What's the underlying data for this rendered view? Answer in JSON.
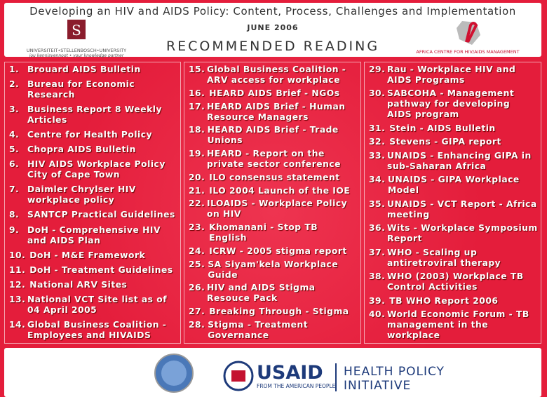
{
  "header": {
    "title": "Developing an HIV and AIDS Policy: Content, Process, Challenges and Implementation",
    "date": "JUNE 2006",
    "heading": "RECOMMENDED READING",
    "left_logo": {
      "name": "UNIVERSITEIT•STELLENBOSCH•UNIVERSITY",
      "tagline": "jou kennisvennoot • your knowledge partner"
    },
    "right_logo": {
      "name": "AFRICA CENTRE FOR HIV/AIDS MANAGEMENT"
    }
  },
  "columns": [
    [
      {
        "num": "1.",
        "text": "Brouard AIDS Bulletin"
      },
      {
        "num": "2.",
        "text": "Bureau for Economic Research"
      },
      {
        "num": "3.",
        "text": "Business Report 8 Weekly Articles"
      },
      {
        "num": "4.",
        "text": "Centre for Health Policy"
      },
      {
        "num": "5.",
        "text": "Chopra AIDS Bulletin"
      },
      {
        "num": "6.",
        "text": "HIV AIDS Workplace Policy City of Cape Town"
      },
      {
        "num": "7.",
        "text": "Daimler Chrylser HIV workplace policy"
      },
      {
        "num": "8.",
        "text": "SANTCP Practical Guidelines"
      },
      {
        "num": "9.",
        "text": "DoH - Comprehensive HIV and AIDS Plan"
      },
      {
        "num": "10.",
        "text": "DoH - M&E Framework"
      },
      {
        "num": "11.",
        "text": "DoH - Treatment Guidelines"
      },
      {
        "num": "12.",
        "text": "National ARV Sites"
      },
      {
        "num": "13.",
        "text": "National VCT Site list as of 04 April 2005"
      },
      {
        "num": "14.",
        "text": "Global Business Coalition - Employees and HIVAIDS"
      }
    ],
    [
      {
        "num": "15.",
        "text": "Global Business Coalition - ARV access for workplace"
      },
      {
        "num": "16.",
        "text": "HEARD AIDS Brief - NGOs"
      },
      {
        "num": "17.",
        "text": "HEARD AIDS Brief - Human Resource Managers"
      },
      {
        "num": "18.",
        "text": "HEARD AIDS Brief - Trade Unions"
      },
      {
        "num": "19.",
        "text": "HEARD - Report on the private sector conference"
      },
      {
        "num": "20.",
        "text": "ILO consensus statement"
      },
      {
        "num": "21.",
        "text": "ILO 2004 Launch of the IOE"
      },
      {
        "num": "22.",
        "text": "ILOAIDS - Workplace Policy on HIV"
      },
      {
        "num": "23.",
        "text": "Khomanani - Stop TB English"
      },
      {
        "num": "24.",
        "text": "ICRW - 2005 stigma report"
      },
      {
        "num": "25.",
        "text": "SA Siyam'kela Workplace Guide"
      },
      {
        "num": "26.",
        "text": "HIV and AIDS Stigma Resouce Pack"
      },
      {
        "num": "27.",
        "text": "Breaking Through - Stigma"
      },
      {
        "num": "28.",
        "text": "Stigma - Treatment Governance"
      }
    ],
    [
      {
        "num": "29.",
        "text": "Rau - Workplace HIV and AIDS Programs"
      },
      {
        "num": "30.",
        "text": "SABCOHA - Management pathway for developing AIDS program"
      },
      {
        "num": "31.",
        "text": "Stein - AIDS Bulletin"
      },
      {
        "num": "32.",
        "text": "Stevens - GIPA report"
      },
      {
        "num": "33.",
        "text": "UNAIDS - Enhancing GIPA in sub-Saharan Africa"
      },
      {
        "num": "34.",
        "text": "UNAIDS - GIPA Workplace Model"
      },
      {
        "num": "35.",
        "text": "UNAIDS - VCT Report - Africa meeting"
      },
      {
        "num": "36.",
        "text": "Wits - Workplace Symposium Report"
      },
      {
        "num": "37.",
        "text": "WHO - Scaling up antiretroviral therapy"
      },
      {
        "num": "38.",
        "text": "WHO (2003) Workplace TB Control Activities"
      },
      {
        "num": "39.",
        "text": "TB WHO Report 2006"
      },
      {
        "num": "40.",
        "text": "World Economic Forum - TB management in the workplace"
      }
    ]
  ],
  "footer": {
    "usaid": "USAID",
    "usaid_tagline": "FROM THE AMERICAN PEOPLE",
    "hpi_line1": "HEALTH POLICY",
    "hpi_line2": "INITIATIVE"
  }
}
